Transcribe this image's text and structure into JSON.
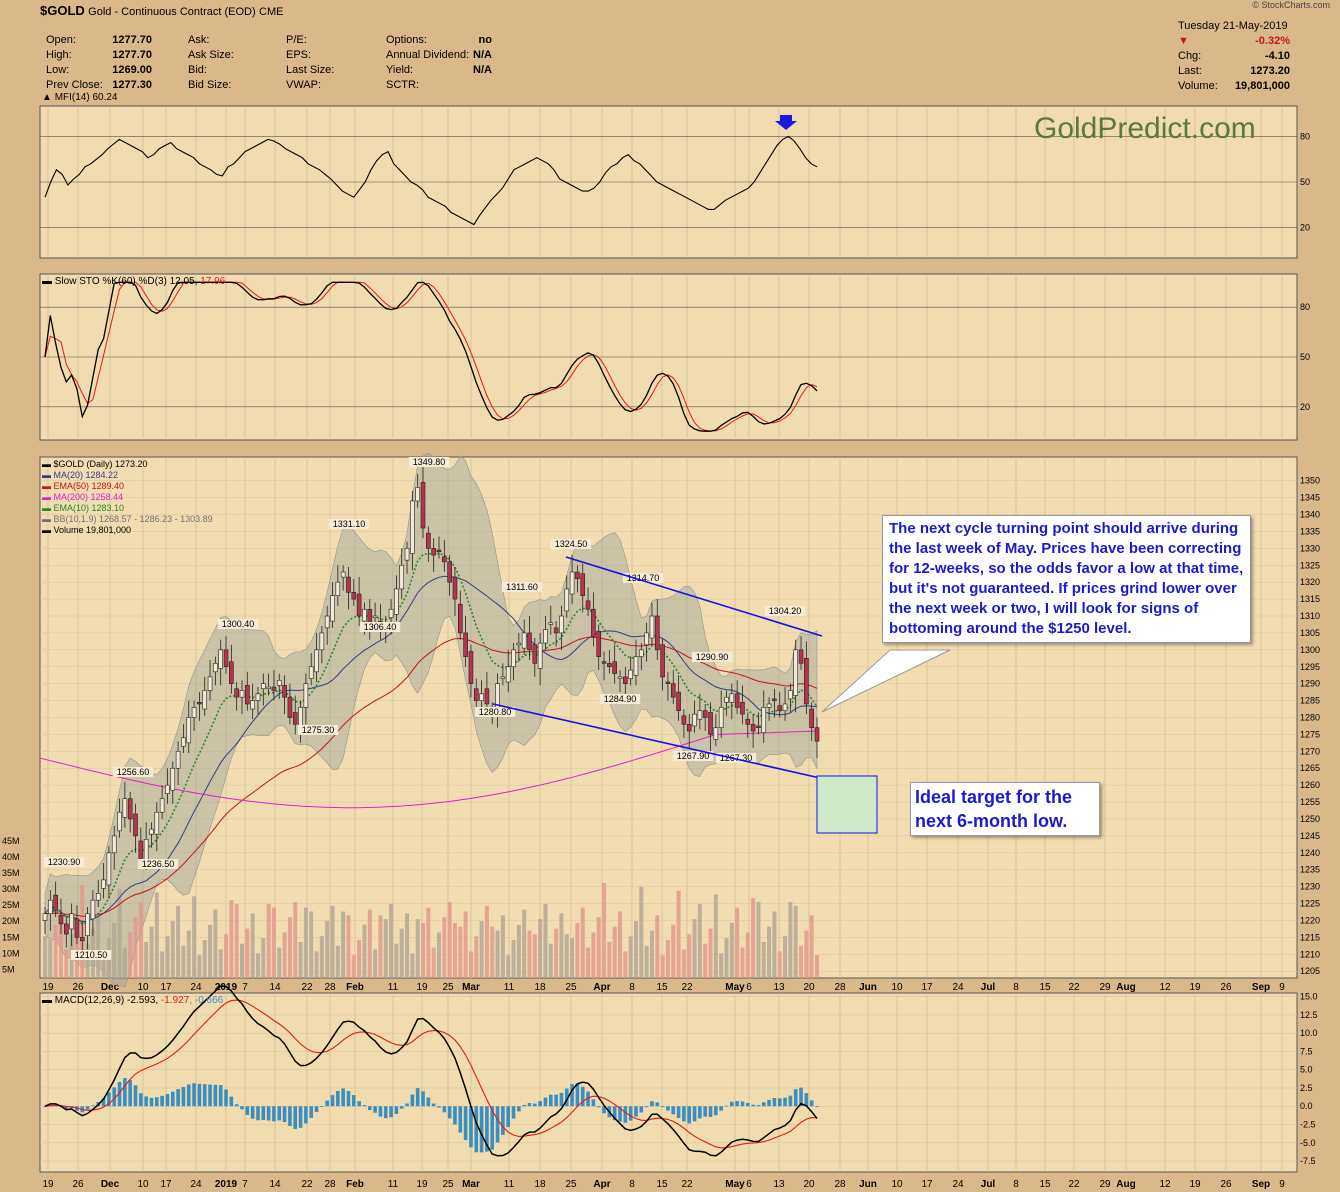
{
  "header": {
    "symbol": "$GOLD",
    "description": "Gold - Continuous Contract (EOD)",
    "exchange": "CME",
    "watermark": "© StockCharts.com",
    "date": "Tuesday  21-May-2019",
    "change_pct": "-0.32%",
    "chg_label": "Chg:",
    "chg": "-4.10",
    "last_label": "Last:",
    "last": "1273.20",
    "volume_label": "Volume:",
    "volume": "19,801,000",
    "fields": [
      {
        "label": "Open:",
        "value": "1277.70"
      },
      {
        "label": "High:",
        "value": "1277.70"
      },
      {
        "label": "Low:",
        "value": "1269.00"
      },
      {
        "label": "Prev Close:",
        "value": "1277.30"
      }
    ],
    "fields2": [
      "Ask:",
      "Ask Size:",
      "Bid:",
      "Bid Size:"
    ],
    "fields3": [
      "P/E:",
      "EPS:",
      "Last Size:",
      "VWAP:"
    ],
    "fields4": [
      {
        "label": "Options:",
        "value": "no"
      },
      {
        "label": "Annual Dividend:",
        "value": "N/A"
      },
      {
        "label": "Yield:",
        "value": "N/A"
      },
      {
        "label": "SCTR:",
        "value": ""
      }
    ],
    "brand": "GoldPredict.com"
  },
  "colors": {
    "up": "#f2ead9",
    "down": "#b8324e",
    "ma20": "#303d8c",
    "ema50": "#c2141b",
    "ma200": "#e020d0",
    "ema10": "#238a2b",
    "bb": "#9aa39a",
    "trend": "#1010ee",
    "macd": "#000000",
    "signal": "#e21a1a",
    "hist": "#3a8fc0"
  },
  "panels": {
    "mfi": {
      "label": "MFI(14) 60.24",
      "levels": [
        "80",
        "50",
        "20"
      ]
    },
    "sto": {
      "label": "Slow STO %K(60) %D(3) 12.05, ",
      "label_d": "17.96",
      "levels": [
        "80",
        "50",
        "20"
      ]
    },
    "price": {
      "legend": [
        {
          "text": "$GOLD (Daily) 1273.20",
          "color": "#000000"
        },
        {
          "text": "MA(20) 1284.22",
          "color": "#303d8c"
        },
        {
          "text": "EMA(50) 1289.40",
          "color": "#c2141b"
        },
        {
          "text": "MA(200) 1258.44",
          "color": "#e020d0"
        },
        {
          "text": "EMA(10) 1283.10",
          "color": "#238a2b"
        },
        {
          "text": "BB(10,1.9) 1268.57 - 1286.23 - 1303.89",
          "color": "#707070"
        },
        {
          "text": "Volume 19,801,000",
          "color": "#000000"
        }
      ],
      "yticks": [
        "1350",
        "1345",
        "1340",
        "1335",
        "1330",
        "1325",
        "1320",
        "1315",
        "1310",
        "1305",
        "1300",
        "1295",
        "1290",
        "1285",
        "1280",
        "1275",
        "1270",
        "1265",
        "1260",
        "1255",
        "1250",
        "1245",
        "1240",
        "1235",
        "1230",
        "1225",
        "1220",
        "1215",
        "1210",
        "1205"
      ],
      "vol_ticks": [
        "45M",
        "40M",
        "35M",
        "30M",
        "25M",
        "20M",
        "15M",
        "10M",
        "5M"
      ],
      "annotations": [
        "1349.80",
        "1331.10",
        "1324.50",
        "1314.70",
        "1311.60",
        "1306.40",
        "1304.20",
        "1300.40",
        "1290.90",
        "1284.90",
        "1280.80",
        "1275.30",
        "1267.90",
        "1267.30",
        "1256.60",
        "1236.50",
        "1230.90",
        "1210.50"
      ]
    },
    "macd": {
      "label": "MACD(12,26,9) -2.593, ",
      "signal_label": "-1.927",
      "hist_label": ", -0.666",
      "yticks": [
        "15.0",
        "12.5",
        "10.0",
        "7.5",
        "5.0",
        "2.5",
        "0.0",
        "-2.5",
        "-5.0",
        "-7.5"
      ]
    }
  },
  "xaxis": [
    "19",
    "26",
    "Dec",
    "10",
    "17",
    "24",
    "2019",
    "7",
    "14",
    "22",
    "28",
    "Feb",
    "11",
    "19",
    "25",
    "Mar",
    "11",
    "18",
    "25",
    "Apr",
    "8",
    "15",
    "22",
    "May",
    "6",
    "13",
    "20",
    "28",
    "Jun",
    "10",
    "17",
    "24",
    "Jul",
    "8",
    "15",
    "22",
    "29",
    "Aug",
    "12",
    "19",
    "26",
    "Sep",
    "9"
  ],
  "callouts": {
    "cycle": "The next cycle turning point should arrive during the last week of May. Prices have been correcting for 12-weeks, so the odds favor a low at that time, but it's not guaranteed. If prices grind lower over the next week or two, I will look for signs of bottoming around the $1250 level.",
    "target": "Ideal target for the next 6-month low."
  },
  "chart_data": {
    "type": "candlestick",
    "title": "$GOLD Gold - Continuous Contract (EOD) CME",
    "period": "Daily",
    "ylim": [
      1203,
      1357
    ],
    "ohlc_summary": {
      "open": 1277.7,
      "high": 1277.7,
      "low": 1269.0,
      "close": 1273.2,
      "prev_close": 1277.3,
      "volume": 19801000
    },
    "closes_approx": [
      1222,
      1226,
      1223,
      1219,
      1216,
      1222,
      1215,
      1214,
      1222,
      1226,
      1228,
      1232,
      1240,
      1245,
      1252,
      1256,
      1250,
      1245,
      1238,
      1244,
      1247,
      1252,
      1256,
      1260,
      1265,
      1270,
      1274,
      1280,
      1283,
      1284,
      1288,
      1292,
      1296,
      1300,
      1295,
      1290,
      1286,
      1288,
      1284,
      1285,
      1287,
      1290,
      1289,
      1288,
      1291,
      1286,
      1280,
      1278,
      1283,
      1290,
      1295,
      1300,
      1305,
      1310,
      1316,
      1320,
      1323,
      1317,
      1315,
      1310,
      1312,
      1308,
      1310,
      1306,
      1308,
      1312,
      1318,
      1325,
      1330,
      1344,
      1348,
      1336,
      1330,
      1328,
      1329,
      1326,
      1320,
      1315,
      1305,
      1298,
      1290,
      1285,
      1287,
      1284,
      1282,
      1290,
      1292,
      1295,
      1300,
      1302,
      1305,
      1300,
      1296,
      1302,
      1306,
      1308,
      1305,
      1310,
      1318,
      1323,
      1321,
      1316,
      1312,
      1304,
      1298,
      1296,
      1295,
      1293,
      1292,
      1290,
      1294,
      1298,
      1300,
      1305,
      1310,
      1300,
      1292,
      1290,
      1286,
      1282,
      1278,
      1276,
      1281,
      1282,
      1280,
      1275,
      1277,
      1283,
      1286,
      1287,
      1283,
      1281,
      1278,
      1276,
      1277,
      1283,
      1284,
      1285,
      1282,
      1284,
      1288,
      1300,
      1296,
      1284,
      1277,
      1273
    ],
    "annotations_values": [
      1349.8,
      1331.1,
      1324.5,
      1314.7,
      1311.6,
      1306.4,
      1304.2,
      1300.4,
      1290.9,
      1284.9,
      1280.8,
      1275.3,
      1267.9,
      1267.3,
      1256.6,
      1236.5,
      1230.9,
      1210.5
    ],
    "overlays": {
      "MA(20)": 1284.22,
      "EMA(50)": 1289.4,
      "MA(200)": 1258.44,
      "EMA(10)": 1283.1,
      "BB(10,1.9)": [
        1268.57,
        1286.23,
        1303.89
      ]
    },
    "indicators": {
      "MFI(14)": {
        "last": 60.24,
        "levels": [
          80,
          50,
          20
        ],
        "values": [
          40,
          50,
          58,
          55,
          48,
          52,
          55,
          60,
          62,
          65,
          68,
          72,
          75,
          78,
          76,
          74,
          72,
          70,
          66,
          68,
          72,
          74,
          76,
          72,
          70,
          68,
          66,
          62,
          60,
          58,
          55,
          54,
          60,
          62,
          66,
          70,
          72,
          74,
          76,
          78,
          77,
          75,
          72,
          70,
          68,
          66,
          62,
          60,
          58,
          55,
          52,
          48,
          44,
          42,
          40,
          45,
          50,
          58,
          64,
          68,
          70,
          62,
          58,
          54,
          50,
          48,
          45,
          40,
          38,
          36,
          34,
          30,
          28,
          26,
          24,
          22,
          28,
          33,
          38,
          42,
          46,
          52,
          58,
          60,
          62,
          64,
          66,
          64,
          62,
          58,
          52,
          50,
          48,
          46,
          44,
          44,
          46,
          50,
          56,
          60,
          62,
          66,
          68,
          64,
          62,
          58,
          54,
          50,
          48,
          46,
          44,
          42,
          40,
          38,
          36,
          34,
          32,
          32,
          35,
          38,
          40,
          42,
          44,
          46,
          50,
          56,
          62,
          68,
          74,
          78,
          80,
          77,
          72,
          66,
          62,
          60
        ]
      },
      "SlowSTO(60,3)": {
        "K": 12.05,
        "D": 17.96,
        "levels": [
          80,
          50,
          20
        ]
      },
      "MACD(12,26,9)": {
        "macd": -2.593,
        "signal": -1.927,
        "histogram": -0.666
      }
    },
    "trendlines": [
      "upper channel from 1324.50 high to ~1300",
      "lower channel from 1280.80 low to ~1258"
    ],
    "target_box": "1245-1260 near end of May"
  }
}
